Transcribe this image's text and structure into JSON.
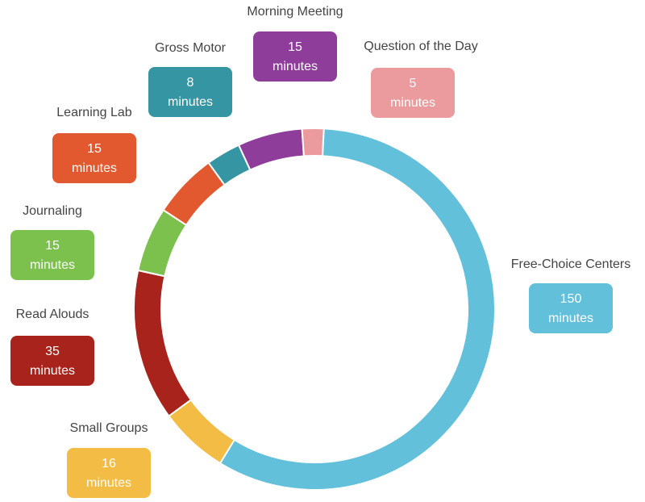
{
  "chart_data": {
    "type": "donut",
    "categories": [
      "Free-Choice Centers",
      "Small Groups",
      "Read Alouds",
      "Journaling",
      "Learning Lab",
      "Gross Motor",
      "Morning Meeting",
      "Question of the Day"
    ],
    "values": [
      150,
      16,
      35,
      15,
      15,
      8,
      15,
      5
    ],
    "colors": [
      "#62c0da",
      "#f2bc45",
      "#a8231b",
      "#7cc04d",
      "#e2582f",
      "#3595a3",
      "#8e3d9b",
      "#eb9b9d"
    ],
    "unit": "minutes"
  }
}
